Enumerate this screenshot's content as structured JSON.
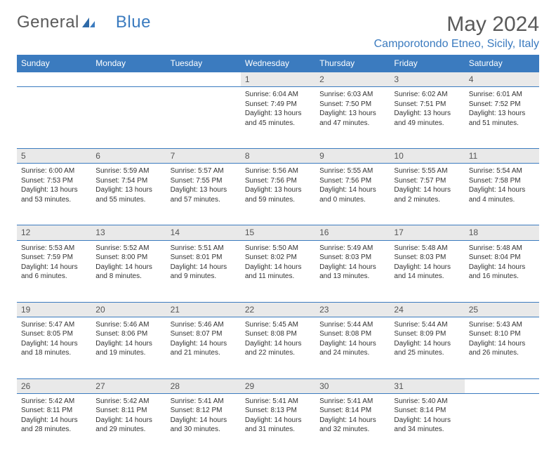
{
  "logo": {
    "text1": "General",
    "text2": "Blue"
  },
  "title": "May 2024",
  "location": "Camporotondo Etneo, Sicily, Italy",
  "colors": {
    "header_bg": "#3b7bbf",
    "header_text": "#ffffff",
    "daynum_bg": "#e9e9e9",
    "border": "#3b7bbf",
    "title_color": "#5a5a5a",
    "location_color": "#3b7bbf"
  },
  "weekdays": [
    "Sunday",
    "Monday",
    "Tuesday",
    "Wednesday",
    "Thursday",
    "Friday",
    "Saturday"
  ],
  "weeks": [
    [
      null,
      null,
      null,
      {
        "n": "1",
        "sr": "Sunrise: 6:04 AM",
        "ss": "Sunset: 7:49 PM",
        "d1": "Daylight: 13 hours",
        "d2": "and 45 minutes."
      },
      {
        "n": "2",
        "sr": "Sunrise: 6:03 AM",
        "ss": "Sunset: 7:50 PM",
        "d1": "Daylight: 13 hours",
        "d2": "and 47 minutes."
      },
      {
        "n": "3",
        "sr": "Sunrise: 6:02 AM",
        "ss": "Sunset: 7:51 PM",
        "d1": "Daylight: 13 hours",
        "d2": "and 49 minutes."
      },
      {
        "n": "4",
        "sr": "Sunrise: 6:01 AM",
        "ss": "Sunset: 7:52 PM",
        "d1": "Daylight: 13 hours",
        "d2": "and 51 minutes."
      }
    ],
    [
      {
        "n": "5",
        "sr": "Sunrise: 6:00 AM",
        "ss": "Sunset: 7:53 PM",
        "d1": "Daylight: 13 hours",
        "d2": "and 53 minutes."
      },
      {
        "n": "6",
        "sr": "Sunrise: 5:59 AM",
        "ss": "Sunset: 7:54 PM",
        "d1": "Daylight: 13 hours",
        "d2": "and 55 minutes."
      },
      {
        "n": "7",
        "sr": "Sunrise: 5:57 AM",
        "ss": "Sunset: 7:55 PM",
        "d1": "Daylight: 13 hours",
        "d2": "and 57 minutes."
      },
      {
        "n": "8",
        "sr": "Sunrise: 5:56 AM",
        "ss": "Sunset: 7:56 PM",
        "d1": "Daylight: 13 hours",
        "d2": "and 59 minutes."
      },
      {
        "n": "9",
        "sr": "Sunrise: 5:55 AM",
        "ss": "Sunset: 7:56 PM",
        "d1": "Daylight: 14 hours",
        "d2": "and 0 minutes."
      },
      {
        "n": "10",
        "sr": "Sunrise: 5:55 AM",
        "ss": "Sunset: 7:57 PM",
        "d1": "Daylight: 14 hours",
        "d2": "and 2 minutes."
      },
      {
        "n": "11",
        "sr": "Sunrise: 5:54 AM",
        "ss": "Sunset: 7:58 PM",
        "d1": "Daylight: 14 hours",
        "d2": "and 4 minutes."
      }
    ],
    [
      {
        "n": "12",
        "sr": "Sunrise: 5:53 AM",
        "ss": "Sunset: 7:59 PM",
        "d1": "Daylight: 14 hours",
        "d2": "and 6 minutes."
      },
      {
        "n": "13",
        "sr": "Sunrise: 5:52 AM",
        "ss": "Sunset: 8:00 PM",
        "d1": "Daylight: 14 hours",
        "d2": "and 8 minutes."
      },
      {
        "n": "14",
        "sr": "Sunrise: 5:51 AM",
        "ss": "Sunset: 8:01 PM",
        "d1": "Daylight: 14 hours",
        "d2": "and 9 minutes."
      },
      {
        "n": "15",
        "sr": "Sunrise: 5:50 AM",
        "ss": "Sunset: 8:02 PM",
        "d1": "Daylight: 14 hours",
        "d2": "and 11 minutes."
      },
      {
        "n": "16",
        "sr": "Sunrise: 5:49 AM",
        "ss": "Sunset: 8:03 PM",
        "d1": "Daylight: 14 hours",
        "d2": "and 13 minutes."
      },
      {
        "n": "17",
        "sr": "Sunrise: 5:48 AM",
        "ss": "Sunset: 8:03 PM",
        "d1": "Daylight: 14 hours",
        "d2": "and 14 minutes."
      },
      {
        "n": "18",
        "sr": "Sunrise: 5:48 AM",
        "ss": "Sunset: 8:04 PM",
        "d1": "Daylight: 14 hours",
        "d2": "and 16 minutes."
      }
    ],
    [
      {
        "n": "19",
        "sr": "Sunrise: 5:47 AM",
        "ss": "Sunset: 8:05 PM",
        "d1": "Daylight: 14 hours",
        "d2": "and 18 minutes."
      },
      {
        "n": "20",
        "sr": "Sunrise: 5:46 AM",
        "ss": "Sunset: 8:06 PM",
        "d1": "Daylight: 14 hours",
        "d2": "and 19 minutes."
      },
      {
        "n": "21",
        "sr": "Sunrise: 5:46 AM",
        "ss": "Sunset: 8:07 PM",
        "d1": "Daylight: 14 hours",
        "d2": "and 21 minutes."
      },
      {
        "n": "22",
        "sr": "Sunrise: 5:45 AM",
        "ss": "Sunset: 8:08 PM",
        "d1": "Daylight: 14 hours",
        "d2": "and 22 minutes."
      },
      {
        "n": "23",
        "sr": "Sunrise: 5:44 AM",
        "ss": "Sunset: 8:08 PM",
        "d1": "Daylight: 14 hours",
        "d2": "and 24 minutes."
      },
      {
        "n": "24",
        "sr": "Sunrise: 5:44 AM",
        "ss": "Sunset: 8:09 PM",
        "d1": "Daylight: 14 hours",
        "d2": "and 25 minutes."
      },
      {
        "n": "25",
        "sr": "Sunrise: 5:43 AM",
        "ss": "Sunset: 8:10 PM",
        "d1": "Daylight: 14 hours",
        "d2": "and 26 minutes."
      }
    ],
    [
      {
        "n": "26",
        "sr": "Sunrise: 5:42 AM",
        "ss": "Sunset: 8:11 PM",
        "d1": "Daylight: 14 hours",
        "d2": "and 28 minutes."
      },
      {
        "n": "27",
        "sr": "Sunrise: 5:42 AM",
        "ss": "Sunset: 8:11 PM",
        "d1": "Daylight: 14 hours",
        "d2": "and 29 minutes."
      },
      {
        "n": "28",
        "sr": "Sunrise: 5:41 AM",
        "ss": "Sunset: 8:12 PM",
        "d1": "Daylight: 14 hours",
        "d2": "and 30 minutes."
      },
      {
        "n": "29",
        "sr": "Sunrise: 5:41 AM",
        "ss": "Sunset: 8:13 PM",
        "d1": "Daylight: 14 hours",
        "d2": "and 31 minutes."
      },
      {
        "n": "30",
        "sr": "Sunrise: 5:41 AM",
        "ss": "Sunset: 8:14 PM",
        "d1": "Daylight: 14 hours",
        "d2": "and 32 minutes."
      },
      {
        "n": "31",
        "sr": "Sunrise: 5:40 AM",
        "ss": "Sunset: 8:14 PM",
        "d1": "Daylight: 14 hours",
        "d2": "and 34 minutes."
      },
      null
    ]
  ]
}
